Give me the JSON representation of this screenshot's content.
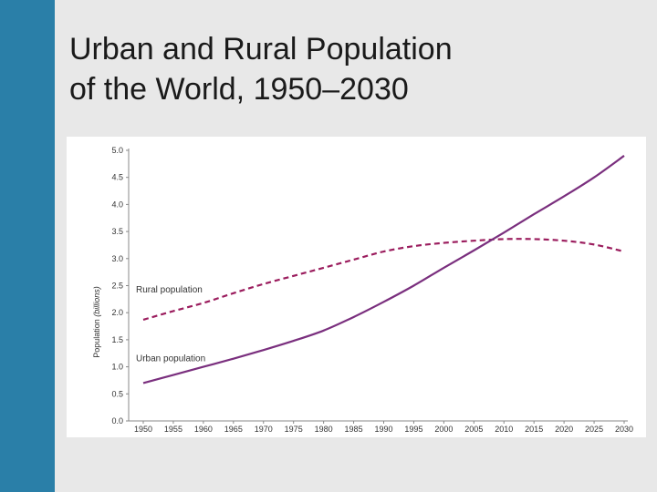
{
  "slide": {
    "title_line1": "Urban and Rural Population",
    "title_line2": "of the World, 1950–2030",
    "accent_color": "#2a7fa8",
    "background_color": "#e8e8e8"
  },
  "chart_data": {
    "type": "line",
    "title": "Urban and Rural Population of the World, 1950–2030",
    "xlabel": "",
    "ylabel_prefix": "Population ",
    "ylabel_italic": "(billions)",
    "categories": [
      "1950",
      "1955",
      "1960",
      "1965",
      "1970",
      "1975",
      "1980",
      "1985",
      "1990",
      "1995",
      "2000",
      "2005",
      "2010",
      "2015",
      "2020",
      "2025",
      "2030"
    ],
    "ylim": [
      0,
      5
    ],
    "yticks": [
      "0.0",
      "0.5",
      "1.0",
      "1.5",
      "2.0",
      "2.5",
      "3.0",
      "3.5",
      "4.0",
      "4.5",
      "5.0"
    ],
    "grid": false,
    "series": [
      {
        "name": "Rural population",
        "style": "dashed",
        "color": "#9b1d5e",
        "values": [
          1.87,
          2.03,
          2.18,
          2.36,
          2.53,
          2.68,
          2.83,
          2.98,
          3.13,
          3.23,
          3.29,
          3.33,
          3.36,
          3.36,
          3.33,
          3.26,
          3.13
        ]
      },
      {
        "name": "Urban population",
        "style": "solid",
        "color": "#7a2f7e",
        "values": [
          0.7,
          0.85,
          1.0,
          1.15,
          1.31,
          1.48,
          1.67,
          1.92,
          2.2,
          2.5,
          2.83,
          3.15,
          3.48,
          3.82,
          4.15,
          4.5,
          4.9
        ]
      }
    ]
  }
}
